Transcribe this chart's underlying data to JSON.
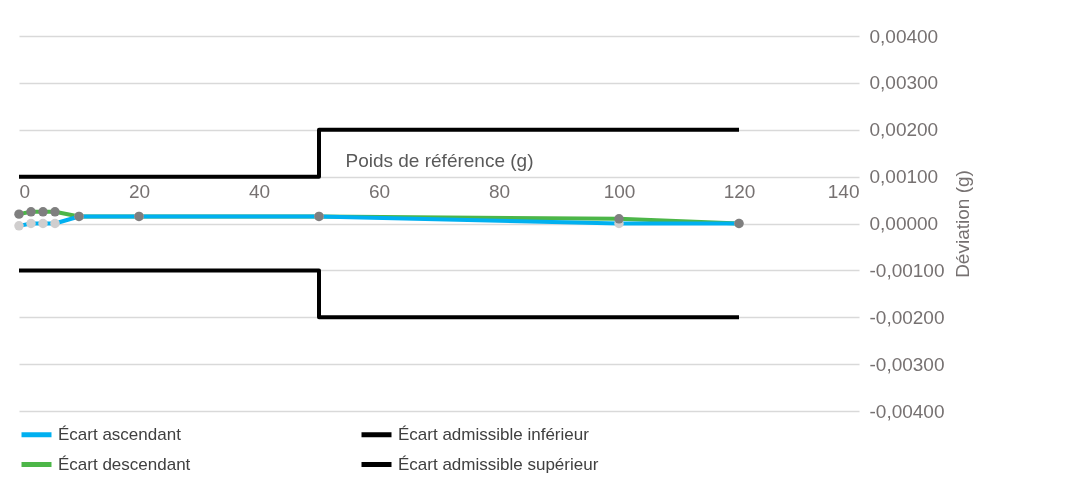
{
  "chart_data": {
    "type": "line",
    "xlabel": "Poids de référence (g)",
    "ylabel": "Déviation (g)",
    "xlim": [
      0,
      140
    ],
    "xticks": [
      0,
      20,
      40,
      60,
      80,
      100,
      120,
      140
    ],
    "ylim": [
      -0.004,
      0.004
    ],
    "yticks": [
      {
        "value": 0.004,
        "label": "0,00400"
      },
      {
        "value": 0.003,
        "label": "0,00300"
      },
      {
        "value": 0.002,
        "label": "0,00200"
      },
      {
        "value": 0.001,
        "label": "0,00100"
      },
      {
        "value": 0,
        "label": "0,00000"
      },
      {
        "value": -0.001,
        "label": "-0,00100"
      },
      {
        "value": -0.002,
        "label": "-0,00200"
      },
      {
        "value": -0.003,
        "label": "-0,00300"
      },
      {
        "value": -0.004,
        "label": "-0,00400"
      }
    ],
    "grid": "y",
    "legend": "bottom",
    "series": [
      {
        "name": "Écart ascendant",
        "color": "#00b0f0",
        "marker": "circle",
        "x": [
          0,
          2,
          4,
          6,
          10,
          20,
          50,
          100,
          120
        ],
        "values": [
          -5e-05,
          0.0,
          0.0,
          0.0,
          0.00015,
          0.00015,
          0.00015,
          0.0,
          0.0
        ]
      },
      {
        "name": "Écart admissible inférieur",
        "color": "#000000",
        "marker": "none",
        "x": [
          0,
          50,
          50,
          120
        ],
        "values": [
          -0.001,
          -0.001,
          -0.002,
          -0.002
        ]
      },
      {
        "name": "Écart descendant",
        "color": "#4cb648",
        "marker": "circle",
        "x": [
          0,
          2,
          4,
          6,
          10,
          20,
          50,
          100,
          120
        ],
        "values": [
          0.0002,
          0.00025,
          0.00025,
          0.00025,
          0.00015,
          0.00015,
          0.00015,
          0.0001,
          0.0
        ]
      },
      {
        "name": "Écart admissible supérieur",
        "color": "#000000",
        "marker": "none",
        "x": [
          0,
          50,
          50,
          120
        ],
        "values": [
          0.001,
          0.001,
          0.002,
          0.002
        ]
      }
    ]
  }
}
